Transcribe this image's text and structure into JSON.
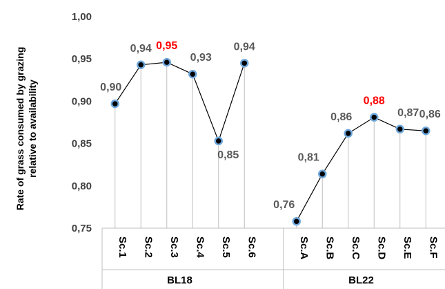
{
  "chart_data": {
    "type": "line",
    "ylabel": [
      "Rate of grass consumed by grazing",
      "relative to availability"
    ],
    "ylim": [
      0.75,
      1.0
    ],
    "yticks": [
      0.75,
      0.8,
      0.85,
      0.9,
      0.95,
      1.0
    ],
    "ytick_labels": [
      "0,75",
      "0,80",
      "0,85",
      "0,90",
      "0,95",
      "1,00"
    ],
    "grid": false,
    "groups": [
      {
        "name": "BL18",
        "categories": [
          "Sc.1",
          "Sc.2",
          "Sc.3",
          "Sc.4",
          "Sc.5",
          "Sc.6"
        ],
        "values": [
          0.897,
          0.943,
          0.946,
          0.932,
          0.853,
          0.945
        ],
        "labels": [
          "0,90",
          "0,94",
          "0,95",
          "0,93",
          "0,85",
          "0,94"
        ],
        "highlight_index": 2
      },
      {
        "name": "BL22",
        "categories": [
          "Sc.A",
          "Sc.B",
          "Sc.C",
          "Sc.D",
          "Sc.E",
          "Sc.F"
        ],
        "values": [
          0.758,
          0.814,
          0.862,
          0.881,
          0.867,
          0.865
        ],
        "labels": [
          "0,76",
          "0,81",
          "0,86",
          "0,88",
          "0,87",
          "0,86"
        ],
        "highlight_index": 3
      }
    ],
    "colors": {
      "line": "#000000",
      "marker_fill": "#000000",
      "marker_edge": "#6fa8dc",
      "dropline": "#bfbfbf",
      "label": "#595959",
      "highlight": "#ff0000",
      "axis": "#bfbfbf"
    }
  }
}
